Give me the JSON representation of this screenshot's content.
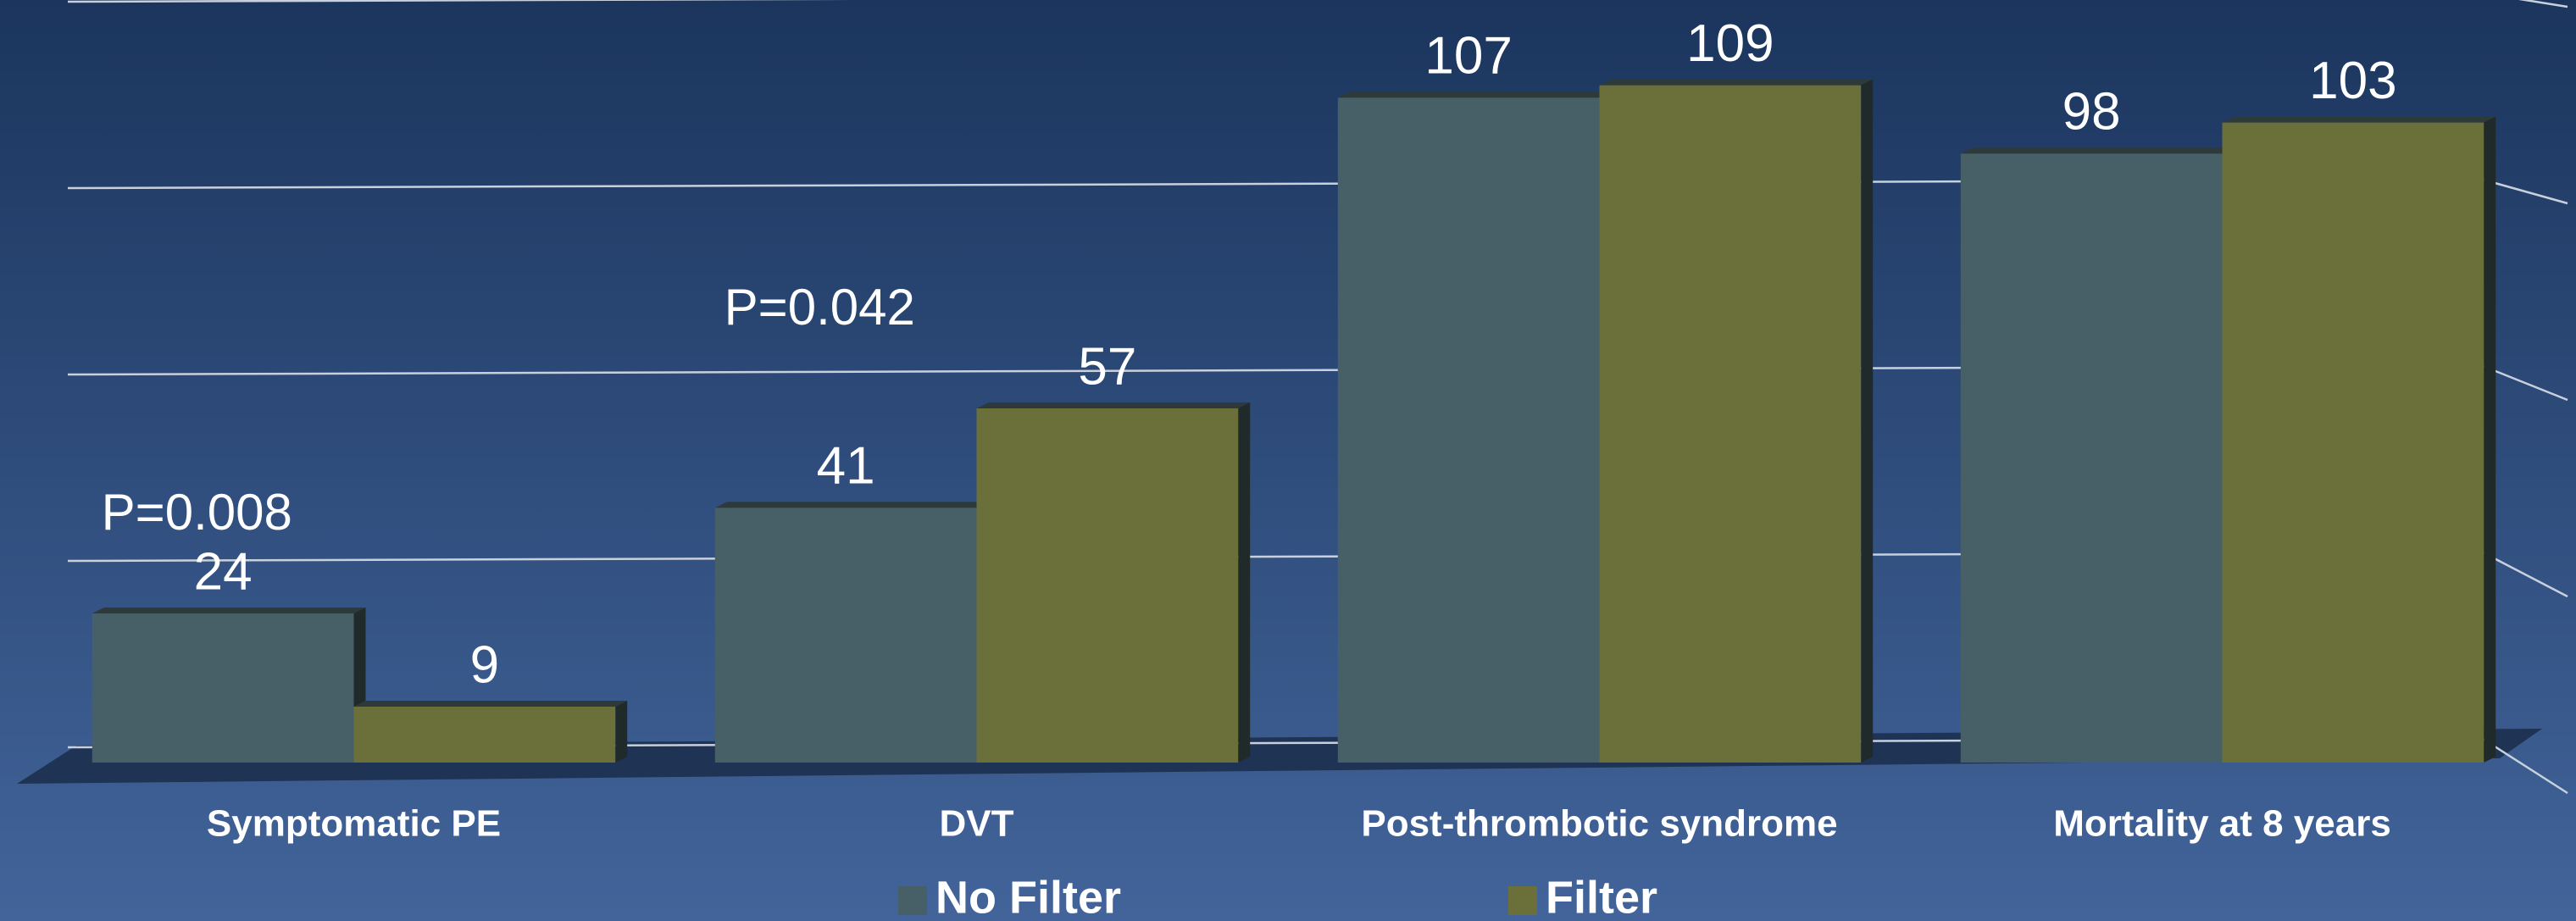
{
  "chart_data": {
    "type": "bar",
    "categories": [
      "Symptomatic PE",
      "DVT",
      "Post-thrombotic syndrome",
      "Mortality at 8 years"
    ],
    "series": [
      {
        "name": "No Filter",
        "color": "#475f66",
        "values": [
          24,
          41,
          107,
          98
        ]
      },
      {
        "name": "Filter",
        "color": "#6b6f3a",
        "values": [
          9,
          57,
          109,
          103
        ]
      }
    ],
    "annotations": [
      "P=0.008",
      "P=0.042"
    ],
    "ylim": [
      0,
      120
    ],
    "yticks": [
      0,
      30,
      60,
      90,
      120
    ],
    "grid": true
  }
}
